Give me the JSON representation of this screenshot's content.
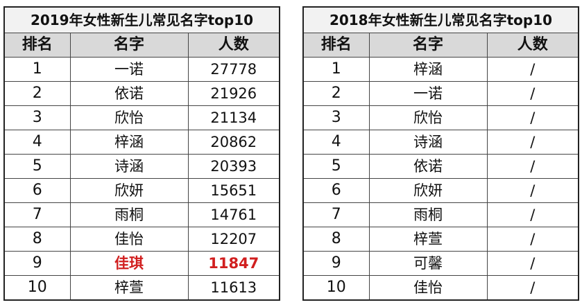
{
  "tables": [
    {
      "title": "2019年女性新生儿常见名字top10",
      "headers": [
        "排名",
        "名字",
        "人数"
      ],
      "rows": [
        {
          "rank": "1",
          "name": "一诺",
          "count": "27778"
        },
        {
          "rank": "2",
          "name": "依诺",
          "count": "21926"
        },
        {
          "rank": "3",
          "name": "欣怡",
          "count": "21134"
        },
        {
          "rank": "4",
          "name": "梓涵",
          "count": "20862"
        },
        {
          "rank": "5",
          "name": "诗涵",
          "count": "20393"
        },
        {
          "rank": "6",
          "name": "欣妍",
          "count": "15651"
        },
        {
          "rank": "7",
          "name": "雨桐",
          "count": "14761"
        },
        {
          "rank": "8",
          "name": "佳怡",
          "count": "12207"
        },
        {
          "rank": "9",
          "name": "佳琪",
          "count": "11847"
        },
        {
          "rank": "10",
          "name": "梓萱",
          "count": "11613"
        }
      ],
      "highlight_row": 9,
      "highlight_color": "#d11f1f"
    },
    {
      "title": "2018年女性新生儿常见名字top10",
      "headers": [
        "排名",
        "名字",
        "人数"
      ],
      "rows": [
        {
          "rank": "1",
          "name": "梓涵",
          "count": "/"
        },
        {
          "rank": "2",
          "name": "一诺",
          "count": "/"
        },
        {
          "rank": "3",
          "name": "欣怡",
          "count": "/"
        },
        {
          "rank": "4",
          "name": "诗涵",
          "count": "/"
        },
        {
          "rank": "5",
          "name": "依诺",
          "count": "/"
        },
        {
          "rank": "6",
          "name": "欣妍",
          "count": "/"
        },
        {
          "rank": "7",
          "name": "雨桐",
          "count": "/"
        },
        {
          "rank": "8",
          "name": "梓萱",
          "count": "/"
        },
        {
          "rank": "9",
          "name": "可馨",
          "count": "/"
        },
        {
          "rank": "10",
          "name": "佳怡",
          "count": "/"
        }
      ]
    }
  ]
}
